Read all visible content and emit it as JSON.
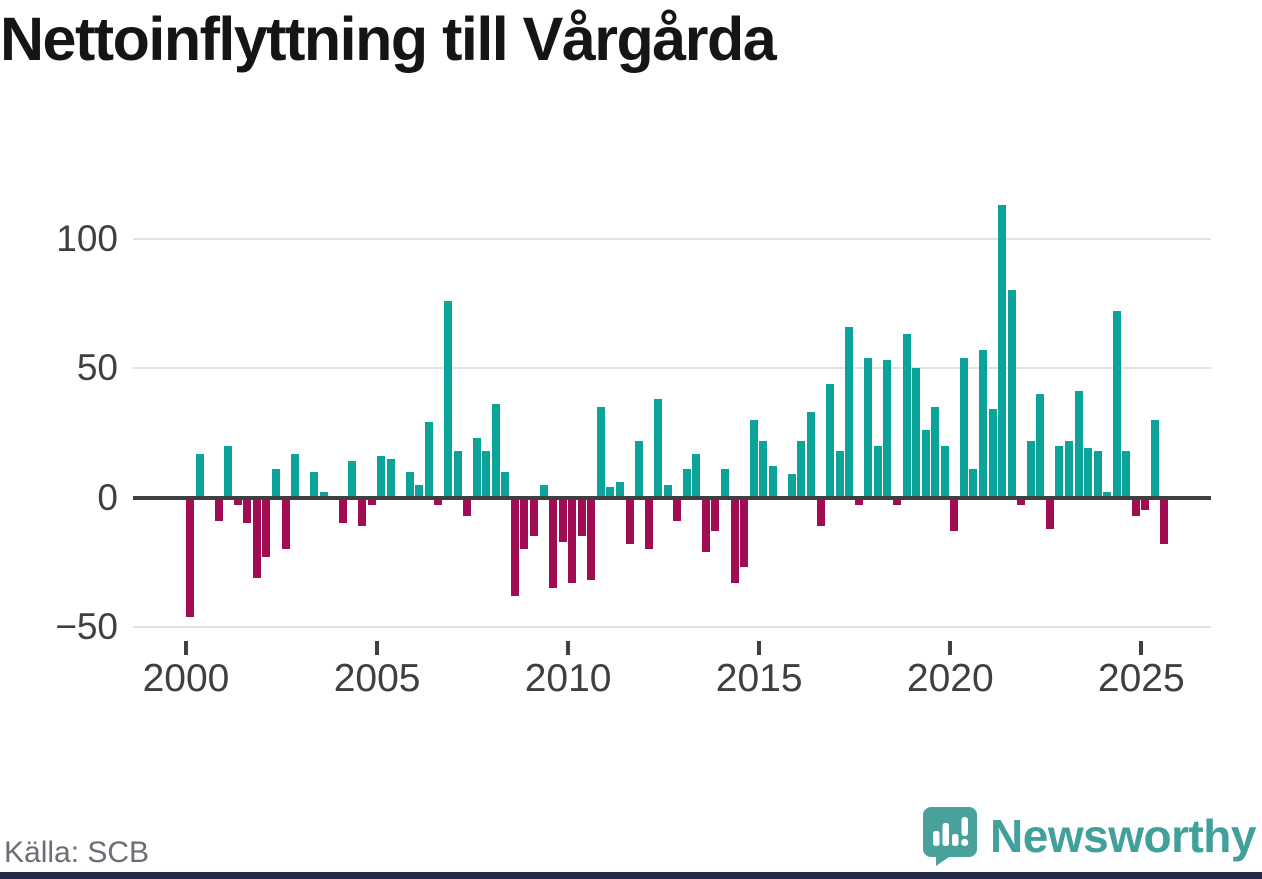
{
  "title": "Nettoinflyttning till Vårgårda",
  "source": "Källa: SCB",
  "branding": {
    "logo_text": "Newsworthy",
    "logo_icon": "speech-bubble-bar-chart-icon"
  },
  "colors": {
    "positive": "#0ca39a",
    "negative": "#a00d52",
    "axis": "#3e3f40",
    "grid": "#e2e2e4",
    "title": "#151515",
    "source_text": "#6d6d76",
    "brand": "#41a09a",
    "bottom_strip": "#232b49"
  },
  "chart_data": {
    "type": "bar",
    "title": "Nettoinflyttning till Vårgårda",
    "xlabel": "",
    "ylabel": "",
    "frequency": "quarterly",
    "start": {
      "year": 2000,
      "quarter": 1
    },
    "end": {
      "year": 2025,
      "quarter": 3
    },
    "values": [
      -46,
      17,
      0,
      -9,
      20,
      -3,
      -10,
      -31,
      -23,
      11,
      -20,
      17,
      0,
      10,
      2,
      0,
      -10,
      14,
      -11,
      -3,
      16,
      15,
      0,
      10,
      5,
      29,
      -3,
      76,
      18,
      -7,
      23,
      18,
      36,
      10,
      -38,
      -20,
      -15,
      5,
      -35,
      -17,
      -33,
      -15,
      -32,
      35,
      4,
      6,
      -18,
      22,
      -20,
      38,
      5,
      -9,
      11,
      17,
      -21,
      -13,
      11,
      -33,
      -27,
      30,
      22,
      12,
      0,
      9,
      22,
      33,
      -11,
      44,
      18,
      66,
      -3,
      54,
      20,
      53,
      -3,
      63,
      50,
      26,
      35,
      20,
      -13,
      54,
      11,
      57,
      34,
      113,
      80,
      -3,
      22,
      40,
      -12,
      20,
      22,
      41,
      19,
      18,
      2,
      72,
      18,
      -7,
      -5,
      30,
      -18
    ],
    "yticks": [
      100,
      50,
      0,
      -50
    ],
    "xticks": [
      2000,
      2005,
      2010,
      2015,
      2020,
      2025
    ],
    "ylim": [
      -50,
      117
    ],
    "grid": "horizontal",
    "legend": "none",
    "positive_color": "#0ca39a",
    "negative_color": "#a00d52"
  }
}
